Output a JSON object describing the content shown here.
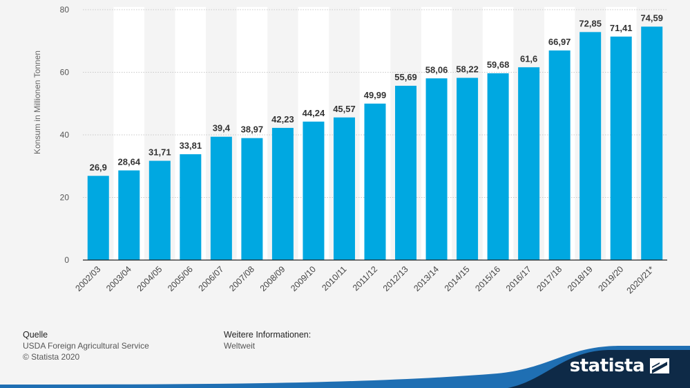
{
  "chart_data": {
    "type": "bar",
    "categories": [
      "2002/03",
      "2003/04",
      "2004/05",
      "2005/06",
      "2006/07",
      "2007/08",
      "2008/09",
      "2009/10",
      "2010/11",
      "2011/12",
      "2012/13",
      "2013/14",
      "2014/15",
      "2015/16",
      "2016/17",
      "2017/18",
      "2018/19",
      "2019/20",
      "2020/21*"
    ],
    "values": [
      26.9,
      28.64,
      31.71,
      33.81,
      39.4,
      38.97,
      42.23,
      44.24,
      45.57,
      49.99,
      55.69,
      58.06,
      58.22,
      59.68,
      61.6,
      66.97,
      72.85,
      71.41,
      74.59
    ],
    "value_labels": [
      "26,9",
      "28,64",
      "31,71",
      "33,81",
      "39,4",
      "38,97",
      "42,23",
      "44,24",
      "45,57",
      "49,99",
      "55,69",
      "58,06",
      "58,22",
      "59,68",
      "61,6",
      "66,97",
      "72,85",
      "71,41",
      "74,59"
    ],
    "ylabel": "Konsum in Millionen Tonnen",
    "ylim": [
      0,
      80
    ],
    "yticks": [
      0,
      20,
      40,
      60,
      80
    ],
    "grid": true,
    "bar_color": "#00a8e1"
  },
  "footer": {
    "source_heading": "Quelle",
    "source_text": "USDA Foreign Agricultural Service",
    "copyright": "© Statista 2020",
    "info_heading": "Weitere Informationen:",
    "info_text": "Weltweit"
  },
  "brand": {
    "name": "statista",
    "logo_icon": "statista-logo-icon",
    "band_color": "#0e2a47",
    "accent_color": "#1f6fb3"
  }
}
